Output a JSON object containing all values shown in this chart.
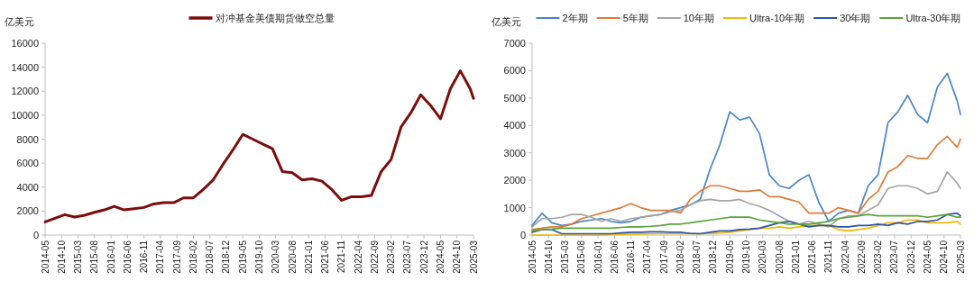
{
  "chart_data": [
    {
      "type": "line",
      "ylabel": "亿美元",
      "legend": "top",
      "x": [
        "2014-05",
        "2014-08",
        "2014-11",
        "2015-02",
        "2015-05",
        "2015-08",
        "2015-11",
        "2016-02",
        "2016-05",
        "2016-08",
        "2016-11",
        "2017-02",
        "2017-05",
        "2017-08",
        "2017-11",
        "2018-02",
        "2018-05",
        "2018-08",
        "2018-11",
        "2019-02",
        "2019-05",
        "2019-08",
        "2019-11",
        "2020-02",
        "2020-05",
        "2020-08",
        "2020-11",
        "2021-02",
        "2021-05",
        "2021-08",
        "2021-11",
        "2022-02",
        "2022-05",
        "2022-08",
        "2022-11",
        "2023-02",
        "2023-05",
        "2023-08",
        "2023-11",
        "2024-02",
        "2024-05",
        "2024-08",
        "2024-11",
        "2025-02",
        "2025-03"
      ],
      "xlim": [
        "2014-05",
        "2025-03"
      ],
      "xticks": [
        "2014-05",
        "2014-10",
        "2015-03",
        "2015-08",
        "2016-01",
        "2016-06",
        "2016-11",
        "2017-04",
        "2017-09",
        "2018-02",
        "2018-07",
        "2018-12",
        "2019-05",
        "2019-10",
        "2020-03",
        "2020-08",
        "2021-01",
        "2021-06",
        "2021-11",
        "2022-04",
        "2022-09",
        "2023-02",
        "2023-07",
        "2023-12",
        "2024-05",
        "2024-10",
        "2025-03"
      ],
      "ylim": [
        0,
        16000
      ],
      "yticks": [
        0,
        2000,
        4000,
        6000,
        8000,
        10000,
        12000,
        14000,
        16000
      ],
      "series": [
        {
          "name": "对冲基金美债期货做空总量",
          "color": "#7b0d0d",
          "values": [
            1100,
            1400,
            1700,
            1500,
            1650,
            1900,
            2100,
            2400,
            2100,
            2200,
            2300,
            2600,
            2700,
            2700,
            3100,
            3100,
            3800,
            4600,
            5900,
            7100,
            8400,
            8000,
            7600,
            7200,
            5300,
            5200,
            4600,
            4700,
            4500,
            3800,
            2900,
            3200,
            3200,
            3300,
            5300,
            6300,
            9000,
            10200,
            11700,
            10800,
            9700,
            12200,
            13700,
            12200,
            11400
          ]
        }
      ]
    },
    {
      "type": "line",
      "ylabel": "亿美元",
      "legend": "top",
      "x": [
        "2014-05",
        "2014-08",
        "2014-11",
        "2015-02",
        "2015-05",
        "2015-08",
        "2015-11",
        "2016-02",
        "2016-05",
        "2016-08",
        "2016-11",
        "2017-02",
        "2017-05",
        "2017-08",
        "2017-11",
        "2018-02",
        "2018-05",
        "2018-08",
        "2018-11",
        "2019-02",
        "2019-05",
        "2019-08",
        "2019-11",
        "2020-02",
        "2020-05",
        "2020-08",
        "2020-11",
        "2021-02",
        "2021-05",
        "2021-08",
        "2021-11",
        "2022-02",
        "2022-05",
        "2022-08",
        "2022-11",
        "2023-02",
        "2023-05",
        "2023-08",
        "2023-11",
        "2024-02",
        "2024-05",
        "2024-08",
        "2024-11",
        "2025-02",
        "2025-03"
      ],
      "xlim": [
        "2014-05",
        "2025-03"
      ],
      "xticks": [
        "2014-05",
        "2014-10",
        "2015-03",
        "2015-08",
        "2016-01",
        "2016-06",
        "2016-11",
        "2017-04",
        "2017-09",
        "2018-02",
        "2018-07",
        "2018-12",
        "2019-05",
        "2019-10",
        "2020-03",
        "2020-08",
        "2021-01",
        "2021-06",
        "2021-11",
        "2022-04",
        "2022-09",
        "2023-02",
        "2023-07",
        "2023-12",
        "2024-05",
        "2024-10",
        "2025-03"
      ],
      "ylim": [
        0,
        7000
      ],
      "yticks": [
        0,
        1000,
        2000,
        3000,
        4000,
        5000,
        6000,
        7000
      ],
      "series": [
        {
          "name": "2年期",
          "color": "#4a86c5",
          "values": [
            350,
            800,
            450,
            350,
            400,
            500,
            550,
            600,
            500,
            450,
            500,
            650,
            700,
            750,
            900,
            1000,
            1100,
            1300,
            2400,
            3300,
            4500,
            4200,
            4300,
            3700,
            2200,
            1800,
            1700,
            2000,
            2200,
            1200,
            500,
            800,
            900,
            800,
            1800,
            2200,
            4100,
            4500,
            5100,
            4400,
            4100,
            5400,
            5900,
            4900,
            4400
          ]
        },
        {
          "name": "5年期",
          "color": "#e07b39",
          "values": [
            200,
            250,
            300,
            300,
            400,
            600,
            700,
            800,
            900,
            1000,
            1150,
            1000,
            900,
            900,
            900,
            800,
            1300,
            1600,
            1800,
            1800,
            1700,
            1600,
            1600,
            1650,
            1400,
            1400,
            1300,
            1200,
            800,
            800,
            800,
            1000,
            900,
            800,
            1300,
            1600,
            2300,
            2500,
            2900,
            2800,
            2800,
            3300,
            3600,
            3200,
            3500
          ]
        },
        {
          "name": "10年期",
          "color": "#a5a5a5",
          "values": [
            300,
            600,
            600,
            650,
            750,
            750,
            650,
            500,
            600,
            500,
            600,
            650,
            700,
            750,
            850,
            900,
            1100,
            1250,
            1300,
            1250,
            1250,
            1300,
            1150,
            1050,
            900,
            700,
            500,
            400,
            500,
            400,
            300,
            600,
            700,
            700,
            900,
            1100,
            1700,
            1800,
            1800,
            1700,
            1500,
            1600,
            2300,
            1900,
            1700
          ]
        },
        {
          "name": "Ultra-10年期",
          "color": "#f2b705",
          "values": [
            0,
            0,
            0,
            0,
            0,
            0,
            0,
            0,
            20,
            30,
            40,
            40,
            50,
            50,
            50,
            50,
            50,
            50,
            60,
            80,
            100,
            150,
            200,
            250,
            250,
            300,
            250,
            300,
            350,
            350,
            350,
            200,
            150,
            200,
            250,
            350,
            450,
            450,
            550,
            550,
            450,
            450,
            450,
            500,
            400
          ]
        },
        {
          "name": "30年期",
          "color": "#2e55a5",
          "values": [
            100,
            200,
            200,
            50,
            50,
            50,
            50,
            50,
            50,
            80,
            100,
            100,
            120,
            120,
            100,
            100,
            60,
            50,
            100,
            150,
            150,
            200,
            220,
            250,
            350,
            450,
            500,
            400,
            300,
            350,
            350,
            300,
            300,
            350,
            350,
            400,
            350,
            450,
            400,
            500,
            500,
            550,
            750,
            800,
            700
          ]
        },
        {
          "name": "Ultra-30年期",
          "color": "#5aa33b",
          "values": [
            150,
            200,
            220,
            250,
            250,
            250,
            250,
            250,
            250,
            280,
            300,
            300,
            320,
            350,
            400,
            400,
            450,
            500,
            550,
            600,
            650,
            650,
            650,
            550,
            500,
            450,
            400,
            400,
            400,
            450,
            500,
            600,
            650,
            700,
            750,
            700,
            700,
            700,
            700,
            700,
            650,
            700,
            750,
            650,
            650
          ]
        }
      ]
    }
  ]
}
